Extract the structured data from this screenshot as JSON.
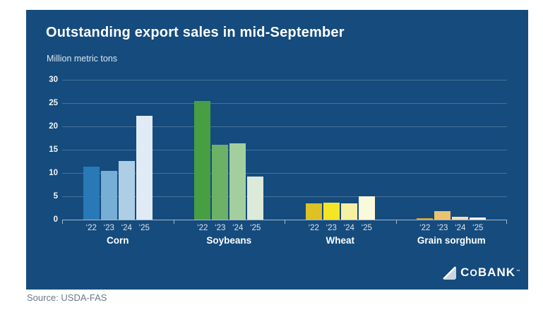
{
  "title": "Outstanding export sales in mid-September",
  "ylabel": "Million metric tons",
  "source": "Source: USDA-FAS",
  "logo": {
    "c": "C",
    "o": "O",
    "bank": "BANK",
    "tm": "™"
  },
  "colors": {
    "panel": "#154b7d",
    "gridline": "rgba(255,255,255,0.22)",
    "baseline": "rgba(255,255,255,0.62)"
  },
  "chart_data": {
    "type": "bar",
    "title": "Outstanding export sales in mid-September",
    "ylabel": "Million metric tons",
    "year_labels": [
      "‘22",
      "‘23",
      "‘24",
      "‘25"
    ],
    "categories": [
      "Corn",
      "Soybeans",
      "Wheat",
      "Grain sorghum"
    ],
    "series": [
      {
        "group": "Corn",
        "values": [
          11.3,
          10.4,
          12.5,
          22.2
        ],
        "colors": [
          "#2a79b7",
          "#77aed5",
          "#adcee5",
          "#e0ebf5"
        ]
      },
      {
        "group": "Soybeans",
        "values": [
          25.5,
          16.1,
          16.3,
          9.3
        ],
        "colors": [
          "#489e43",
          "#6cb165",
          "#a3cf9e",
          "#dceada"
        ]
      },
      {
        "group": "Wheat",
        "values": [
          3.5,
          3.6,
          3.5,
          5.0
        ],
        "colors": [
          "#ddc125",
          "#f5e526",
          "#f6f0a2",
          "#fbf9dc"
        ]
      },
      {
        "group": "Grain sorghum",
        "values": [
          0.3,
          1.8,
          0.6,
          0.4
        ],
        "colors": [
          "#d5a32e",
          "#eac371",
          "#f1ddb4",
          "#f4f1e6"
        ]
      }
    ],
    "yticks": [
      0,
      5,
      10,
      15,
      20,
      25,
      30
    ],
    "ylim": [
      0,
      30
    ],
    "grid": true,
    "legend": false
  }
}
